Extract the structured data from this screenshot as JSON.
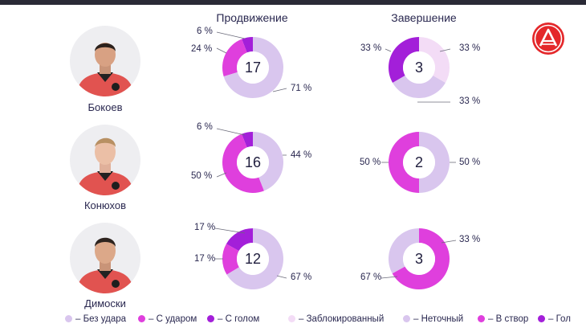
{
  "headers": {
    "progression": "Продвижение",
    "finishing": "Завершение"
  },
  "colors": {
    "no_shot": "#d9c6ee",
    "with_shot": "#df3fdd",
    "with_goal": "#a31fd9",
    "blocked": "#f3dcf6",
    "off_target": "#d9c6ee",
    "on_target": "#df3fdd",
    "goal": "#a31fd9"
  },
  "chart_data": [
    {
      "type": "pie",
      "title": "Продвижение",
      "player": "Бокоев",
      "center": "17",
      "slices": [
        {
          "name": "С голом",
          "value": 6,
          "label": "6 %"
        },
        {
          "name": "С ударом",
          "value": 24,
          "label": "24 %"
        },
        {
          "name": "Без удара",
          "value": 71,
          "label": "71 %"
        }
      ]
    },
    {
      "type": "pie",
      "title": "Завершение",
      "player": "Бокоев",
      "center": "3",
      "slices": [
        {
          "name": "Гол",
          "value": 33,
          "label": "33 %"
        },
        {
          "name": "Заблокированный",
          "value": 33,
          "label": "33 %"
        },
        {
          "name": "Неточный",
          "value": 33,
          "label": "33 %"
        }
      ]
    },
    {
      "type": "pie",
      "title": "Продвижение",
      "player": "Конюхов",
      "center": "16",
      "slices": [
        {
          "name": "С голом",
          "value": 6,
          "label": "6 %"
        },
        {
          "name": "С ударом",
          "value": 50,
          "label": "50 %"
        },
        {
          "name": "Без удара",
          "value": 44,
          "label": "44 %"
        }
      ]
    },
    {
      "type": "pie",
      "title": "Завершение",
      "player": "Конюхов",
      "center": "2",
      "slices": [
        {
          "name": "Неточный",
          "value": 50,
          "label": "50 %"
        },
        {
          "name": "В створ",
          "value": 50,
          "label": "50 %"
        }
      ]
    },
    {
      "type": "pie",
      "title": "Продвижение",
      "player": "Димоски",
      "center": "12",
      "slices": [
        {
          "name": "С голом",
          "value": 17,
          "label": "17 %"
        },
        {
          "name": "С ударом",
          "value": 17,
          "label": "17 %"
        },
        {
          "name": "Без удара",
          "value": 67,
          "label": "67 %"
        }
      ]
    },
    {
      "type": "pie",
      "title": "Завершение",
      "player": "Димоски",
      "center": "3",
      "slices": [
        {
          "name": "Неточный",
          "value": 33,
          "label": "33 %"
        },
        {
          "name": "В створ",
          "value": 67,
          "label": "67 %"
        }
      ]
    }
  ],
  "players": [
    {
      "name": "Бокоев"
    },
    {
      "name": "Конюхов"
    },
    {
      "name": "Димоски"
    }
  ],
  "legend": [
    {
      "label": "– Без удара",
      "color_key": "no_shot"
    },
    {
      "label": "– С ударом",
      "color_key": "with_shot"
    },
    {
      "label": "– С голом",
      "color_key": "with_goal"
    },
    {
      "label": "– Заблокированный",
      "color_key": "blocked"
    },
    {
      "label": "– Неточный",
      "color_key": "off_target"
    },
    {
      "label": "– В створ",
      "color_key": "on_target"
    },
    {
      "label": "– Гол",
      "color_key": "goal"
    }
  ],
  "logo": {
    "icon": "club-logo-icon"
  }
}
